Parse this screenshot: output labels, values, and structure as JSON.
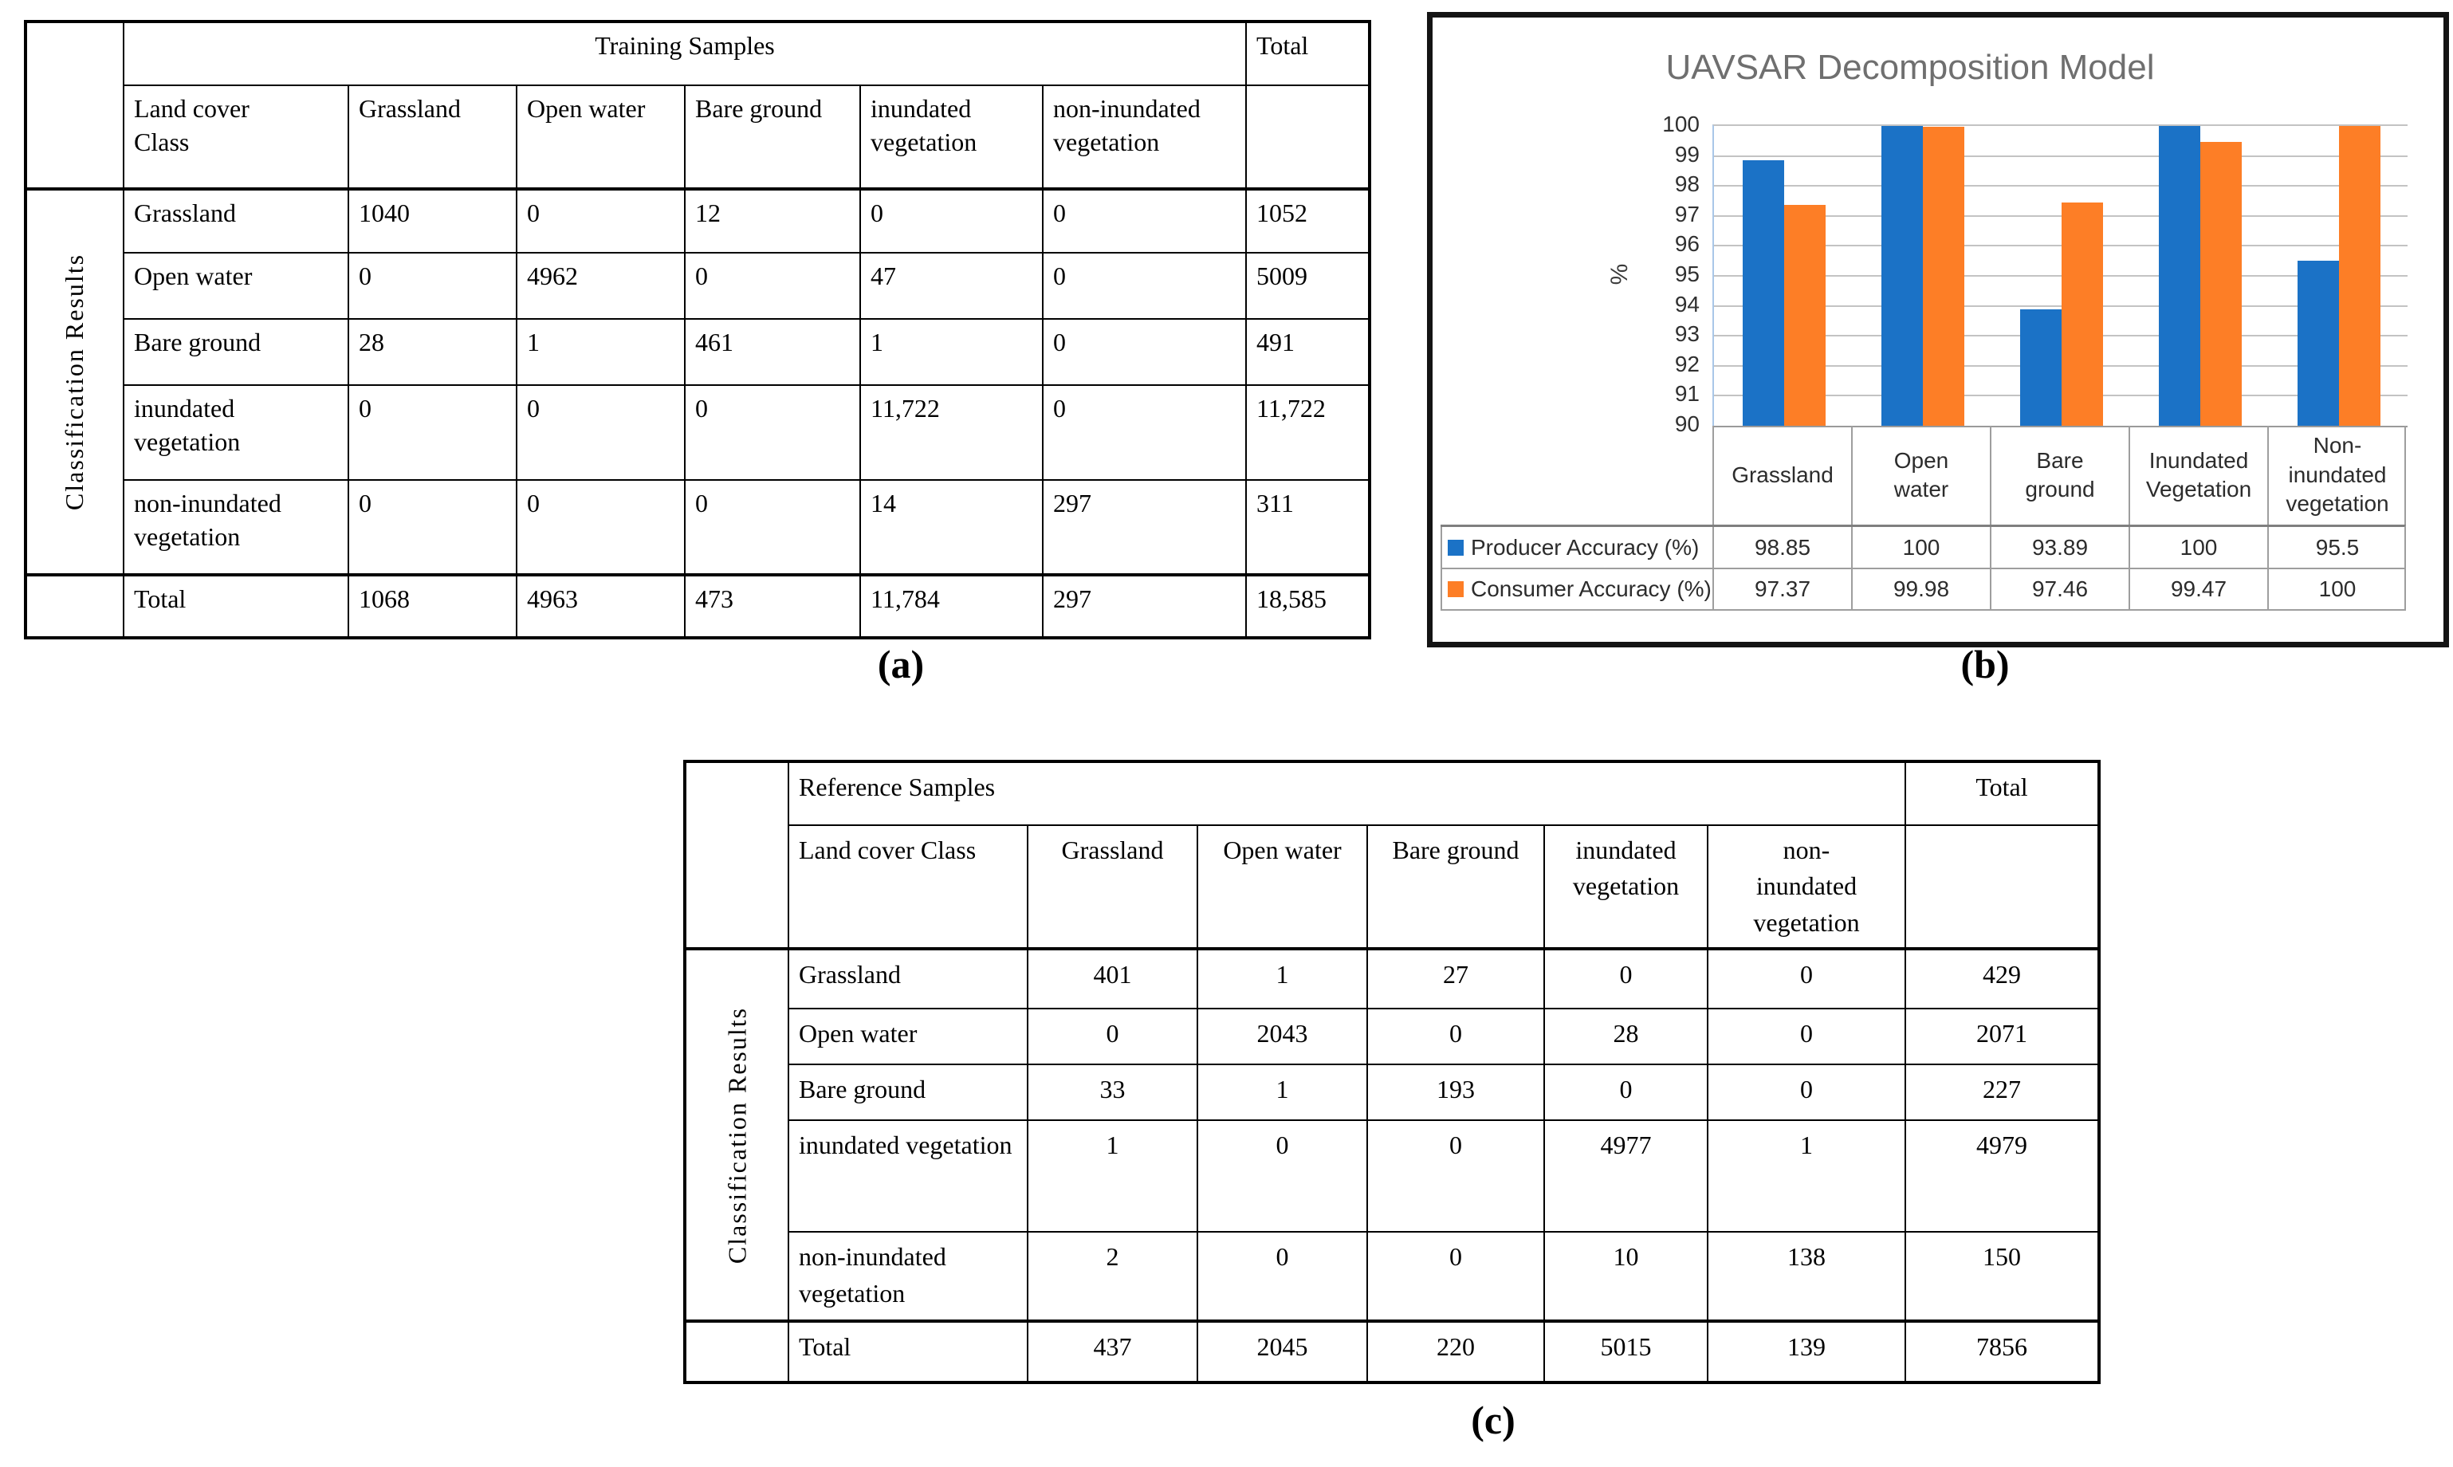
{
  "captions": {
    "a": "(a)",
    "b": "(b)",
    "c": "(c)"
  },
  "table_a": {
    "group_header": "Training Samples",
    "total_header": "Total",
    "corner_label": "Land cover\nClass",
    "side_label": "Classification Results",
    "col_headers": [
      "Grassland",
      "Open water",
      "Bare ground",
      "inundated vegetation",
      "non-inundated vegetation"
    ],
    "rows": [
      {
        "label": "Grassland",
        "values": [
          "1040",
          "0",
          "12",
          "0",
          "0"
        ],
        "total": "1052"
      },
      {
        "label": "Open water",
        "values": [
          "0",
          "4962",
          "0",
          "47",
          "0"
        ],
        "total": "5009"
      },
      {
        "label": "Bare ground",
        "values": [
          "28",
          "1",
          "461",
          "1",
          "0"
        ],
        "total": "491"
      },
      {
        "label": "inundated vegetation",
        "values": [
          "0",
          "0",
          "0",
          "11,722",
          "0"
        ],
        "total": "11,722"
      },
      {
        "label": "non-inundated vegetation",
        "values": [
          "0",
          "0",
          "0",
          "14",
          "297"
        ],
        "total": "311"
      }
    ],
    "total_row": {
      "label": "Total",
      "values": [
        "1068",
        "4963",
        "473",
        "11,784",
        "297"
      ],
      "total": "18,585"
    }
  },
  "table_c": {
    "group_header": "Reference Samples",
    "total_header": "Total",
    "corner_label": "Land cover Class",
    "side_label": "Classification Results",
    "col_headers": [
      "Grassland",
      "Open water",
      "Bare ground",
      "inundated vegetation",
      "non-\ninundated\nvegetation"
    ],
    "rows": [
      {
        "label": "Grassland",
        "values": [
          "401",
          "1",
          "27",
          "0",
          "0"
        ],
        "total": "429"
      },
      {
        "label": "Open water",
        "values": [
          "0",
          "2043",
          "0",
          "28",
          "0"
        ],
        "total": "2071"
      },
      {
        "label": "Bare ground",
        "values": [
          "33",
          "1",
          "193",
          "0",
          "0"
        ],
        "total": "227"
      },
      {
        "label": "inundated vegetation",
        "values": [
          "1",
          "0",
          "0",
          "4977",
          "1"
        ],
        "total": "4979"
      },
      {
        "label": "non-inundated vegetation",
        "values": [
          "2",
          "0",
          "0",
          "10",
          "138"
        ],
        "total": "150"
      }
    ],
    "total_row": {
      "label": "Total",
      "values": [
        "437",
        "2045",
        "220",
        "5015",
        "139"
      ],
      "total": "7856"
    }
  },
  "chart_data": {
    "type": "bar",
    "title": "UAVSAR Decomposition Model",
    "ylabel": "%",
    "ylim": [
      90,
      100
    ],
    "ytick_step": 1,
    "grid": true,
    "legend_position": "data-table-below",
    "categories": [
      "Grassland",
      "Open\nwater",
      "Bare\nground",
      "Inundated\nVegetation",
      "Non-\ninundated\nvegetation"
    ],
    "series": [
      {
        "name": "Producer Accuracy (%)",
        "color": "#1b72c6",
        "values": [
          98.85,
          100,
          93.89,
          100,
          95.5
        ]
      },
      {
        "name": "Consumer Accuracy (%)",
        "color": "#fd7e26",
        "values": [
          97.37,
          99.98,
          97.46,
          99.47,
          100
        ]
      }
    ],
    "colors": {
      "gridline": "#c3c3c3",
      "title": "#6f6f6f",
      "axis_text": "#303030"
    }
  }
}
